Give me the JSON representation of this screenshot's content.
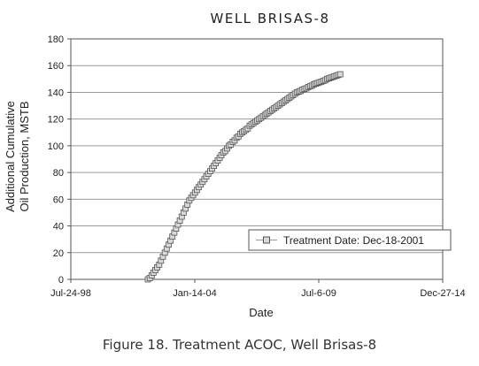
{
  "chart_data": {
    "type": "scatter",
    "title": "WELL BRISAS-8",
    "xlabel": "Date",
    "ylabel_lines": [
      "Additional Cumulative",
      "Oil Production, MSTB"
    ],
    "x_ticks": [
      "Jul-24-98",
      "Jan-14-04",
      "Jul-6-09",
      "Dec-27-14"
    ],
    "xlim": [
      "1998-07-24",
      "2014-12-27"
    ],
    "y_ticks": [
      "0",
      "20",
      "40",
      "60",
      "80",
      "100",
      "120",
      "140",
      "160",
      "180"
    ],
    "ylim": [
      0,
      180
    ],
    "grid": "horizontal",
    "legend_position": "bottom-right",
    "series": [
      {
        "name": "Treatment Date: Dec-18-2001",
        "color": "#999999",
        "marker": "square",
        "points": [
          [
            "2001-12-18",
            0
          ],
          [
            "2002-01-18",
            1
          ],
          [
            "2002-02-18",
            3
          ],
          [
            "2002-03-18",
            5
          ],
          [
            "2002-04-18",
            7
          ],
          [
            "2002-05-18",
            9
          ],
          [
            "2002-06-18",
            11
          ],
          [
            "2002-07-18",
            14
          ],
          [
            "2002-08-18",
            17
          ],
          [
            "2002-09-18",
            20
          ],
          [
            "2002-10-18",
            23
          ],
          [
            "2002-11-18",
            26
          ],
          [
            "2002-12-18",
            29
          ],
          [
            "2003-01-18",
            32
          ],
          [
            "2003-02-18",
            35
          ],
          [
            "2003-03-18",
            38
          ],
          [
            "2003-04-18",
            41
          ],
          [
            "2003-05-18",
            44
          ],
          [
            "2003-06-18",
            47
          ],
          [
            "2003-07-18",
            50
          ],
          [
            "2003-08-18",
            53
          ],
          [
            "2003-09-18",
            56
          ],
          [
            "2003-10-18",
            59
          ],
          [
            "2003-11-18",
            61
          ],
          [
            "2003-12-18",
            63
          ],
          [
            "2004-01-18",
            65
          ],
          [
            "2004-02-18",
            67
          ],
          [
            "2004-03-18",
            69
          ],
          [
            "2004-04-18",
            71
          ],
          [
            "2004-05-18",
            73
          ],
          [
            "2004-06-18",
            75
          ],
          [
            "2004-07-18",
            77
          ],
          [
            "2004-08-18",
            79
          ],
          [
            "2004-09-18",
            81
          ],
          [
            "2004-10-18",
            83
          ],
          [
            "2004-11-18",
            85
          ],
          [
            "2004-12-18",
            87
          ],
          [
            "2005-01-18",
            89
          ],
          [
            "2005-02-18",
            91
          ],
          [
            "2005-03-18",
            93
          ],
          [
            "2005-04-18",
            95
          ],
          [
            "2005-05-18",
            96
          ],
          [
            "2005-06-18",
            98
          ],
          [
            "2005-07-18",
            100
          ],
          [
            "2005-08-18",
            101
          ],
          [
            "2005-09-18",
            103
          ],
          [
            "2005-10-18",
            104
          ],
          [
            "2005-11-18",
            106
          ],
          [
            "2005-12-18",
            107
          ],
          [
            "2006-01-18",
            109
          ],
          [
            "2006-02-18",
            110
          ],
          [
            "2006-03-18",
            111
          ],
          [
            "2006-04-18",
            112
          ],
          [
            "2006-05-18",
            113
          ],
          [
            "2006-06-18",
            115
          ],
          [
            "2006-07-18",
            116
          ],
          [
            "2006-08-18",
            117
          ],
          [
            "2006-09-18",
            118
          ],
          [
            "2006-10-18",
            119
          ],
          [
            "2006-11-18",
            120
          ],
          [
            "2006-12-18",
            121
          ],
          [
            "2007-01-18",
            122
          ],
          [
            "2007-02-18",
            123
          ],
          [
            "2007-03-18",
            124
          ],
          [
            "2007-04-18",
            125
          ],
          [
            "2007-05-18",
            126
          ],
          [
            "2007-06-18",
            127
          ],
          [
            "2007-07-18",
            128
          ],
          [
            "2007-08-18",
            129
          ],
          [
            "2007-09-18",
            130
          ],
          [
            "2007-10-18",
            131
          ],
          [
            "2007-11-18",
            132
          ],
          [
            "2007-12-18",
            133
          ],
          [
            "2008-01-18",
            134
          ],
          [
            "2008-02-18",
            135
          ],
          [
            "2008-03-18",
            136
          ],
          [
            "2008-04-18",
            137
          ],
          [
            "2008-05-18",
            138
          ],
          [
            "2008-06-18",
            139
          ],
          [
            "2008-07-18",
            140
          ],
          [
            "2008-08-18",
            140.5
          ],
          [
            "2008-09-18",
            141
          ],
          [
            "2008-10-18",
            142
          ],
          [
            "2008-11-18",
            142.5
          ],
          [
            "2008-12-18",
            143
          ],
          [
            "2009-01-18",
            144
          ],
          [
            "2009-02-18",
            144.5
          ],
          [
            "2009-03-18",
            145
          ],
          [
            "2009-04-18",
            146
          ],
          [
            "2009-05-18",
            146.5
          ],
          [
            "2009-06-18",
            147
          ],
          [
            "2009-07-18",
            147.5
          ],
          [
            "2009-08-18",
            148
          ],
          [
            "2009-09-18",
            148.5
          ],
          [
            "2009-10-18",
            149
          ],
          [
            "2009-11-18",
            150
          ],
          [
            "2009-12-18",
            150.5
          ],
          [
            "2010-01-18",
            151
          ],
          [
            "2010-02-18",
            151.5
          ],
          [
            "2010-03-18",
            152
          ],
          [
            "2010-04-18",
            152.5
          ],
          [
            "2010-05-18",
            153
          ],
          [
            "2010-06-18",
            153.5
          ]
        ]
      }
    ],
    "caption": "Figure 18. Treatment ACOC, Well Brisas-8"
  }
}
